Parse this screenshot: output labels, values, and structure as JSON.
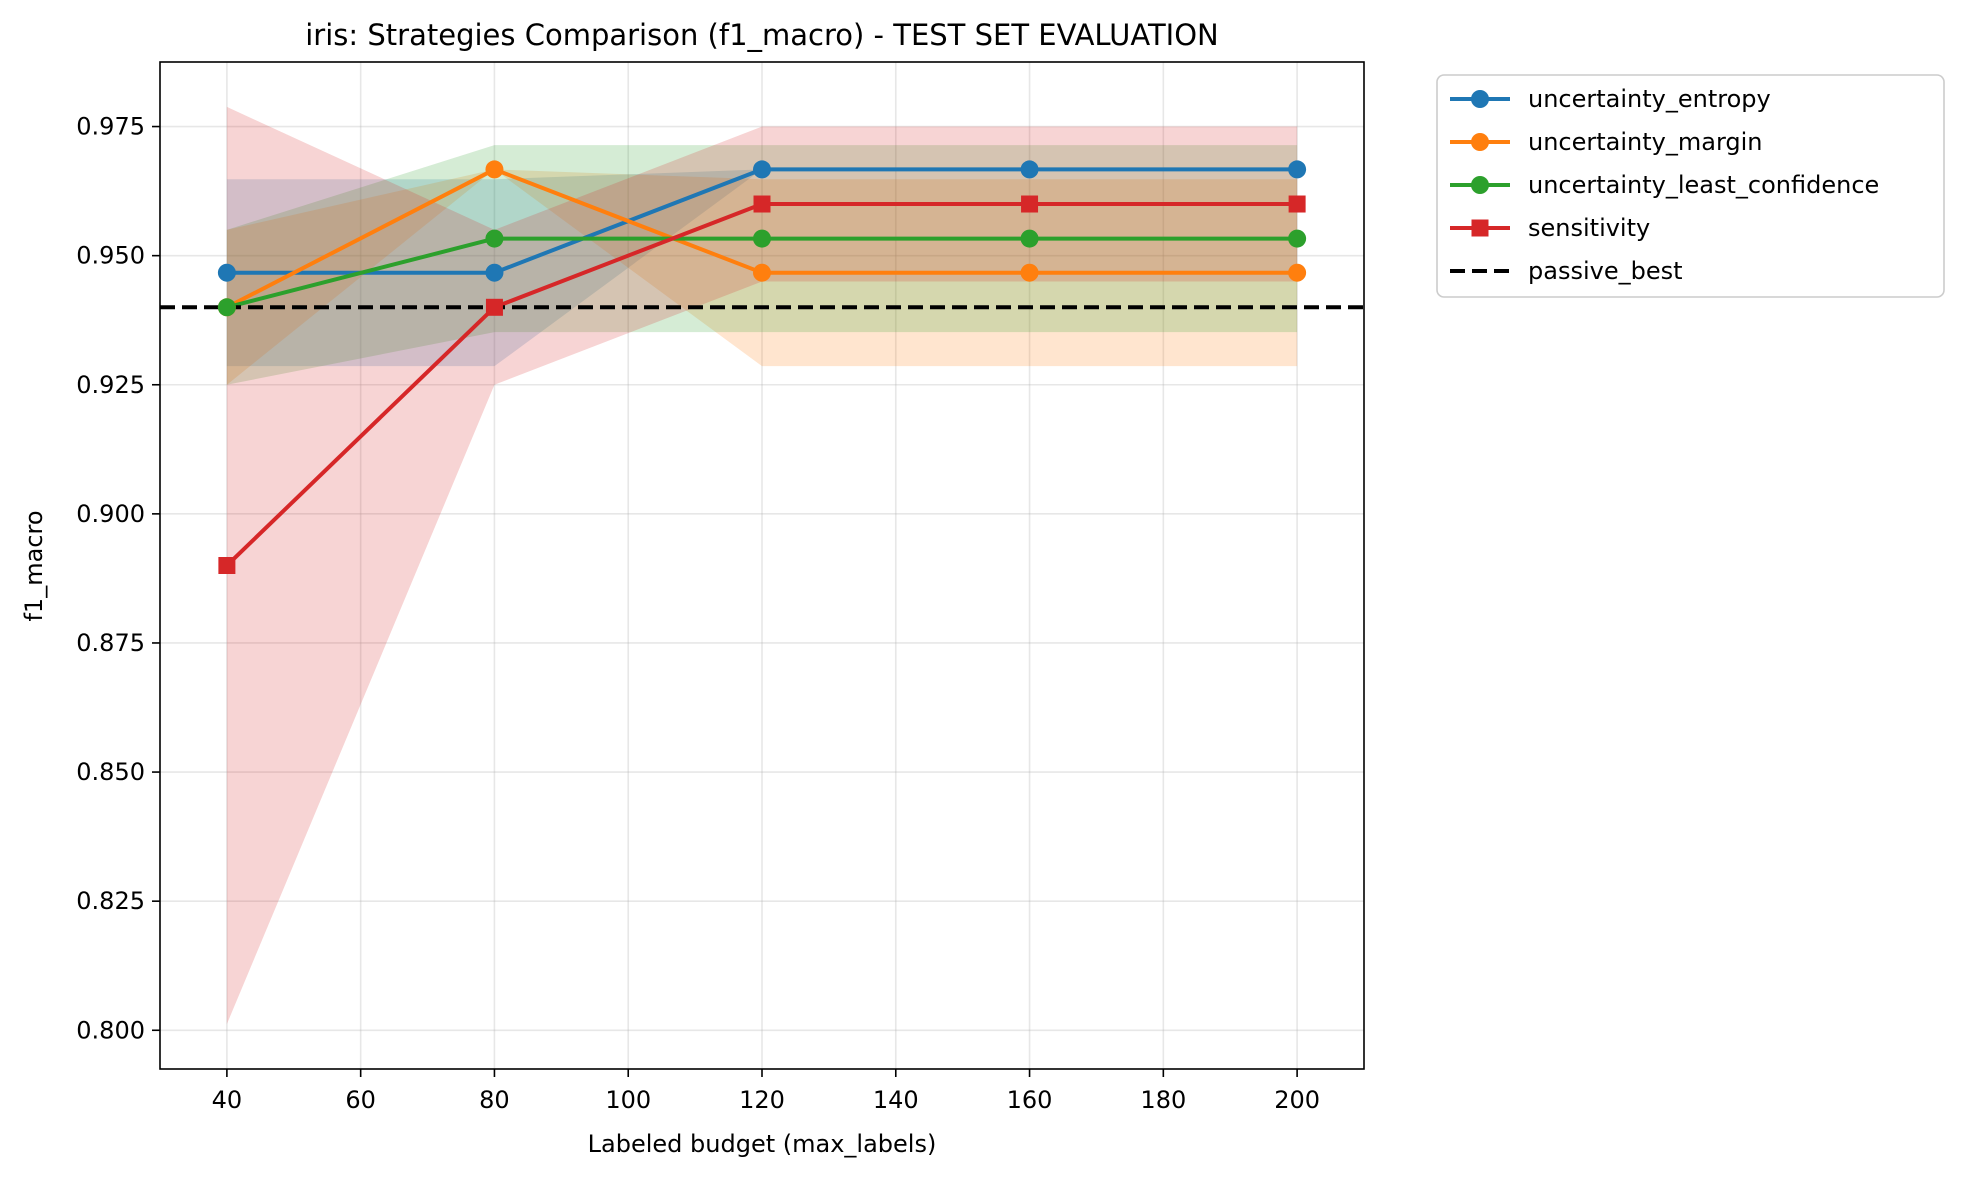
{
  "chart_data": {
    "type": "line",
    "title": "iris: Strategies Comparison (f1_macro) - TEST SET EVALUATION",
    "xlabel": "Labeled budget (max_labels)",
    "ylabel": "f1_macro",
    "xlim": [
      30,
      210
    ],
    "ylim": [
      0.7925,
      0.9875
    ],
    "x_ticks": [
      40,
      60,
      80,
      100,
      120,
      140,
      160,
      180,
      200
    ],
    "y_ticks": [
      0.8,
      0.825,
      0.85,
      0.875,
      0.9,
      0.925,
      0.95,
      0.975
    ],
    "grid": true,
    "legend_position": "outside-top-right",
    "x": [
      40,
      80,
      120,
      160,
      200
    ],
    "series": [
      {
        "name": "uncertainty_entropy",
        "color": "#1f77b4",
        "marker": "circle",
        "values": [
          0.9467,
          0.9467,
          0.9667,
          0.9667,
          0.9667
        ],
        "lower": [
          0.9286,
          0.9286,
          0.9667,
          0.9667,
          0.9667
        ],
        "upper": [
          0.9648,
          0.9648,
          0.9667,
          0.9667,
          0.9667
        ]
      },
      {
        "name": "uncertainty_margin",
        "color": "#ff7f0e",
        "marker": "circle",
        "values": [
          0.94,
          0.9667,
          0.9467,
          0.9467,
          0.9467
        ],
        "lower": [
          0.925,
          0.9667,
          0.9286,
          0.9286,
          0.9286
        ],
        "upper": [
          0.955,
          0.9667,
          0.9648,
          0.9648,
          0.9648
        ]
      },
      {
        "name": "uncertainty_least_confidence",
        "color": "#2ca02c",
        "marker": "circle",
        "values": [
          0.94,
          0.9533,
          0.9533,
          0.9533,
          0.9533
        ],
        "lower": [
          0.925,
          0.9352,
          0.9352,
          0.9352,
          0.9352
        ],
        "upper": [
          0.955,
          0.9714,
          0.9714,
          0.9714,
          0.9714
        ]
      },
      {
        "name": "sensitivity",
        "color": "#d62728",
        "marker": "square",
        "values": [
          0.89,
          0.94,
          0.96,
          0.96,
          0.96
        ],
        "lower": [
          0.8012,
          0.925,
          0.945,
          0.945,
          0.945
        ],
        "upper": [
          0.9788,
          0.955,
          0.975,
          0.975,
          0.975
        ]
      }
    ],
    "reference_line": {
      "name": "passive_best",
      "value": 0.94,
      "color": "#000000",
      "style": "dashed"
    }
  }
}
